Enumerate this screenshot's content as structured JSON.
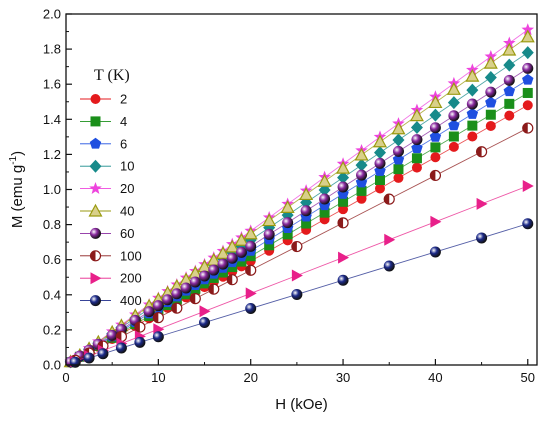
{
  "chart_data": {
    "type": "scatter",
    "xlabel": "H (kOe)",
    "ylabel": "M (emu g⁻¹)",
    "xlim": [
      0,
      51
    ],
    "ylim": [
      0,
      2.0
    ],
    "x_ticks": [
      0,
      10,
      20,
      30,
      40,
      50
    ],
    "y_ticks": [
      0.0,
      0.2,
      0.4,
      0.6,
      0.8,
      1.0,
      1.2,
      1.4,
      1.6,
      1.8,
      2.0
    ],
    "grid": false,
    "legend_title": "T (K)",
    "legend_position": "top-left",
    "series": [
      {
        "name": "2",
        "color": "#e41a1c",
        "marker": "circle",
        "slope": 0.0296,
        "x": [
          0.5,
          1.5,
          2.5,
          3.5,
          5,
          6,
          7.5,
          9,
          10,
          11,
          12,
          13,
          14,
          15,
          16,
          17,
          18,
          19,
          20,
          22,
          24,
          26,
          28,
          30,
          32,
          34,
          36,
          38,
          40,
          42,
          44,
          46,
          48,
          50
        ],
        "values": [
          0.015,
          0.044,
          0.074,
          0.104,
          0.148,
          0.178,
          0.222,
          0.266,
          0.296,
          0.326,
          0.355,
          0.385,
          0.414,
          0.444,
          0.474,
          0.503,
          0.533,
          0.562,
          0.592,
          0.651,
          0.71,
          0.77,
          0.83,
          0.888,
          0.947,
          1.006,
          1.066,
          1.125,
          1.184,
          1.243,
          1.302,
          1.362,
          1.421,
          1.48
        ]
      },
      {
        "name": "4",
        "color": "#1a8f1a",
        "marker": "square",
        "slope": 0.031,
        "x": [
          0.5,
          1.5,
          2.5,
          3.5,
          5,
          6,
          7.5,
          9,
          10,
          11,
          12,
          13,
          14,
          15,
          16,
          17,
          18,
          19,
          20,
          22,
          24,
          26,
          28,
          30,
          32,
          34,
          36,
          38,
          40,
          42,
          44,
          46,
          48,
          50
        ],
        "values": [
          0.016,
          0.047,
          0.078,
          0.109,
          0.155,
          0.186,
          0.233,
          0.279,
          0.31,
          0.341,
          0.372,
          0.403,
          0.434,
          0.465,
          0.496,
          0.527,
          0.558,
          0.589,
          0.62,
          0.682,
          0.744,
          0.806,
          0.868,
          0.93,
          0.992,
          1.054,
          1.116,
          1.178,
          1.24,
          1.302,
          1.364,
          1.426,
          1.488,
          1.55
        ]
      },
      {
        "name": "6",
        "color": "#1f4fe0",
        "marker": "pentagon",
        "slope": 0.0325,
        "x": [
          0.5,
          1.5,
          2.5,
          3.5,
          5,
          6,
          7.5,
          9,
          10,
          11,
          12,
          13,
          14,
          15,
          16,
          17,
          18,
          19,
          20,
          22,
          24,
          26,
          28,
          30,
          32,
          34,
          36,
          38,
          40,
          42,
          44,
          46,
          48,
          50
        ],
        "values": [
          0.016,
          0.049,
          0.081,
          0.114,
          0.163,
          0.195,
          0.244,
          0.293,
          0.325,
          0.358,
          0.39,
          0.423,
          0.455,
          0.488,
          0.52,
          0.553,
          0.585,
          0.618,
          0.65,
          0.715,
          0.78,
          0.845,
          0.91,
          0.975,
          1.04,
          1.105,
          1.17,
          1.235,
          1.3,
          1.365,
          1.43,
          1.495,
          1.56,
          1.625
        ]
      },
      {
        "name": "10",
        "color": "#178a8a",
        "marker": "diamond",
        "slope": 0.0356,
        "x": [
          0.5,
          1.5,
          2.5,
          3.5,
          5,
          6,
          7.5,
          9,
          10,
          11,
          12,
          13,
          14,
          15,
          16,
          17,
          18,
          19,
          20,
          22,
          24,
          26,
          28,
          30,
          32,
          34,
          36,
          38,
          40,
          42,
          44,
          46,
          48,
          50
        ],
        "values": [
          0.018,
          0.053,
          0.089,
          0.125,
          0.178,
          0.214,
          0.267,
          0.32,
          0.356,
          0.392,
          0.427,
          0.463,
          0.498,
          0.534,
          0.57,
          0.605,
          0.641,
          0.676,
          0.712,
          0.783,
          0.854,
          0.926,
          0.997,
          1.068,
          1.139,
          1.21,
          1.282,
          1.353,
          1.424,
          1.495,
          1.566,
          1.638,
          1.709,
          1.78
        ]
      },
      {
        "name": "20",
        "color": "#ee44dd",
        "marker": "star",
        "slope": 0.0382,
        "x": [
          0.5,
          1.5,
          2.5,
          3.5,
          5,
          6,
          7.5,
          9,
          10,
          11,
          12,
          13,
          14,
          15,
          16,
          17,
          18,
          19,
          20,
          22,
          24,
          26,
          28,
          30,
          32,
          34,
          36,
          38,
          40,
          42,
          44,
          46,
          48,
          50
        ],
        "values": [
          0.019,
          0.057,
          0.096,
          0.134,
          0.191,
          0.229,
          0.287,
          0.344,
          0.382,
          0.42,
          0.458,
          0.497,
          0.535,
          0.573,
          0.611,
          0.649,
          0.688,
          0.726,
          0.764,
          0.84,
          0.917,
          0.993,
          1.07,
          1.146,
          1.222,
          1.299,
          1.375,
          1.452,
          1.528,
          1.604,
          1.681,
          1.757,
          1.834,
          1.91
        ]
      },
      {
        "name": "40",
        "color": "#9a9a10",
        "marker": "triangle",
        "slope": 0.0374,
        "x": [
          0.5,
          1.5,
          2.5,
          3.5,
          5,
          6,
          7.5,
          9,
          10,
          11,
          12,
          13,
          14,
          15,
          16,
          17,
          18,
          19,
          20,
          22,
          24,
          26,
          28,
          30,
          32,
          34,
          36,
          38,
          40,
          42,
          44,
          46,
          48,
          50
        ],
        "values": [
          0.019,
          0.056,
          0.094,
          0.131,
          0.187,
          0.224,
          0.281,
          0.337,
          0.374,
          0.411,
          0.449,
          0.486,
          0.524,
          0.561,
          0.598,
          0.636,
          0.673,
          0.711,
          0.748,
          0.823,
          0.898,
          0.972,
          1.047,
          1.122,
          1.197,
          1.272,
          1.346,
          1.421,
          1.496,
          1.571,
          1.646,
          1.72,
          1.795,
          1.87
        ]
      },
      {
        "name": "60",
        "color": "#8a2aa0",
        "marker": "ball",
        "slope": 0.0338,
        "x": [
          0.5,
          1.5,
          2.5,
          3.5,
          5,
          6,
          7.5,
          9,
          10,
          11,
          12,
          13,
          14,
          15,
          16,
          17,
          18,
          19,
          20,
          22,
          24,
          26,
          28,
          30,
          32,
          34,
          36,
          38,
          40,
          42,
          44,
          46,
          48,
          50
        ],
        "values": [
          0.017,
          0.051,
          0.085,
          0.118,
          0.169,
          0.203,
          0.254,
          0.304,
          0.338,
          0.372,
          0.406,
          0.439,
          0.473,
          0.507,
          0.541,
          0.575,
          0.608,
          0.642,
          0.676,
          0.744,
          0.811,
          0.879,
          0.946,
          1.014,
          1.082,
          1.149,
          1.217,
          1.284,
          1.352,
          1.42,
          1.487,
          1.555,
          1.622,
          1.69
        ]
      },
      {
        "name": "100",
        "color": "#8b1a1a",
        "marker": "half-circle",
        "slope": 0.027,
        "x": [
          1,
          2.5,
          4,
          6,
          8,
          10,
          12,
          14,
          16,
          18,
          20,
          25,
          30,
          35,
          40,
          45,
          50
        ],
        "values": [
          0.027,
          0.068,
          0.108,
          0.162,
          0.216,
          0.27,
          0.324,
          0.378,
          0.432,
          0.486,
          0.54,
          0.675,
          0.81,
          0.945,
          1.08,
          1.215,
          1.35
        ]
      },
      {
        "name": "200",
        "color": "#e8208a",
        "marker": "triangle-right",
        "slope": 0.0204,
        "x": [
          1,
          2.5,
          4,
          6,
          8,
          10,
          15,
          20,
          25,
          30,
          35,
          40,
          45,
          50
        ],
        "values": [
          0.02,
          0.051,
          0.082,
          0.122,
          0.163,
          0.204,
          0.306,
          0.408,
          0.51,
          0.612,
          0.714,
          0.816,
          0.918,
          1.02
        ]
      },
      {
        "name": "400",
        "color": "#1c2a8a",
        "marker": "ball",
        "slope": 0.0161,
        "x": [
          1,
          2.5,
          4,
          6,
          8,
          10,
          15,
          20,
          25,
          30,
          35,
          40,
          45,
          50
        ],
        "values": [
          0.016,
          0.04,
          0.064,
          0.097,
          0.129,
          0.161,
          0.242,
          0.322,
          0.402,
          0.483,
          0.564,
          0.644,
          0.724,
          0.805
        ]
      }
    ]
  }
}
